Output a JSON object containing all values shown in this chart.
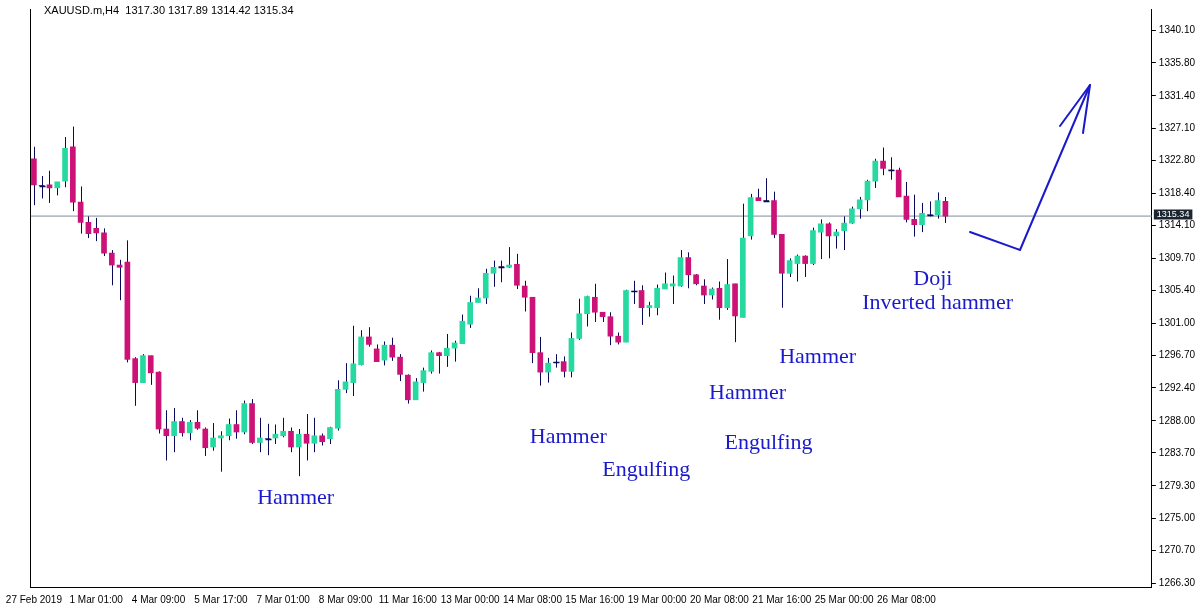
{
  "chart_data": {
    "type": "candlestick",
    "title": "XAUUSD.m,H4  1317.30 1317.89 1314.42 1315.34",
    "categories": [
      "27 Feb 2019",
      null,
      null,
      null,
      null,
      null,
      null,
      null,
      "1 Mar 01:00",
      null,
      null,
      null,
      null,
      null,
      null,
      null,
      "4 Mar 09:00",
      null,
      null,
      null,
      null,
      null,
      null,
      null,
      "5 Mar 17:00",
      null,
      null,
      null,
      null,
      null,
      null,
      null,
      "7 Mar 01:00",
      null,
      null,
      null,
      null,
      null,
      null,
      null,
      "8 Mar 09:00",
      null,
      null,
      null,
      null,
      null,
      null,
      null,
      "11 Mar 16:00",
      null,
      null,
      null,
      null,
      null,
      null,
      null,
      "13 Mar 00:00",
      null,
      null,
      null,
      null,
      null,
      null,
      null,
      "14 Mar 08:00",
      null,
      null,
      null,
      null,
      null,
      null,
      null,
      "15 Mar 16:00",
      null,
      null,
      null,
      null,
      null,
      null,
      null,
      "19 Mar 00:00",
      null,
      null,
      null,
      null,
      null,
      null,
      null,
      "20 Mar 08:00",
      null,
      null,
      null,
      null,
      null,
      null,
      null,
      "21 Mar 16:00",
      null,
      null,
      null,
      null,
      null,
      null,
      null,
      "25 Mar 00:00",
      null,
      null,
      null,
      null,
      null,
      null,
      null,
      "26 Mar 08:00",
      null,
      null,
      null,
      null,
      null,
      null,
      null,
      null,
      null,
      null,
      null,
      null,
      null,
      null,
      null,
      null,
      null,
      null,
      null,
      null,
      null,
      null,
      null,
      null,
      null,
      null,
      null,
      null,
      null,
      null,
      null
    ],
    "ohlc": [
      [
        1323.0,
        1324.6,
        1316.8,
        1319.5
      ],
      [
        1319.4,
        1320.7,
        1317.7,
        1319.4
      ],
      [
        1319.5,
        1321.4,
        1317.1,
        1319.1
      ],
      [
        1319.1,
        1319.9,
        1318.1,
        1319.9
      ],
      [
        1320.0,
        1325.9,
        1319.2,
        1324.4
      ],
      [
        1324.6,
        1327.3,
        1316.0,
        1317.2
      ],
      [
        1317.2,
        1319.3,
        1313.0,
        1314.5
      ],
      [
        1314.5,
        1315.3,
        1312.4,
        1313.0
      ],
      [
        1313.7,
        1315.1,
        1312.0,
        1313.1
      ],
      [
        1313.1,
        1313.7,
        1310.0,
        1310.4
      ],
      [
        1310.4,
        1310.8,
        1306.1,
        1308.8
      ],
      [
        1308.8,
        1309.5,
        1304.1,
        1308.5
      ],
      [
        1309.2,
        1312.1,
        1295.8,
        1296.2
      ],
      [
        1296.3,
        1296.5,
        1290.0,
        1293.1
      ],
      [
        1293.1,
        1296.9,
        1293.1,
        1296.7
      ],
      [
        1296.7,
        1296.7,
        1292.8,
        1294.4
      ],
      [
        1294.5,
        1294.6,
        1286.3,
        1286.9
      ],
      [
        1286.9,
        1289.4,
        1282.7,
        1286.0
      ],
      [
        1286.0,
        1289.7,
        1283.8,
        1287.9
      ],
      [
        1287.9,
        1288.4,
        1285.9,
        1286.4
      ],
      [
        1286.4,
        1288.1,
        1285.4,
        1287.8
      ],
      [
        1287.8,
        1289.4,
        1286.8,
        1287.0
      ],
      [
        1286.9,
        1287.1,
        1283.3,
        1284.4
      ],
      [
        1284.5,
        1287.7,
        1284.0,
        1285.7
      ],
      [
        1285.7,
        1286.6,
        1281.2,
        1286.0
      ],
      [
        1286.0,
        1288.3,
        1285.4,
        1287.5
      ],
      [
        1287.5,
        1289.4,
        1285.6,
        1286.5
      ],
      [
        1286.5,
        1290.7,
        1286.2,
        1290.3
      ],
      [
        1290.3,
        1290.9,
        1284.9,
        1285.1
      ],
      [
        1285.1,
        1288.4,
        1283.8,
        1285.7
      ],
      [
        1285.6,
        1287.6,
        1283.4,
        1285.6
      ],
      [
        1285.7,
        1287.5,
        1284.9,
        1286.2
      ],
      [
        1286.0,
        1288.4,
        1285.8,
        1286.6
      ],
      [
        1286.6,
        1287.1,
        1283.8,
        1284.5
      ],
      [
        1284.5,
        1286.9,
        1280.6,
        1286.2
      ],
      [
        1286.2,
        1288.9,
        1282.7,
        1285.0
      ],
      [
        1285.0,
        1288.4,
        1283.8,
        1286.0
      ],
      [
        1286.0,
        1286.3,
        1284.7,
        1285.2
      ],
      [
        1285.6,
        1287.2,
        1284.9,
        1287.1
      ],
      [
        1287.0,
        1293.4,
        1286.7,
        1292.2
      ],
      [
        1292.2,
        1295.7,
        1291.7,
        1293.2
      ],
      [
        1293.1,
        1300.7,
        1291.3,
        1295.6
      ],
      [
        1295.5,
        1300.1,
        1295.4,
        1299.2
      ],
      [
        1299.2,
        1300.5,
        1297.9,
        1298.2
      ],
      [
        1297.6,
        1298.2,
        1295.9,
        1295.9
      ],
      [
        1296.1,
        1298.6,
        1295.4,
        1298.1
      ],
      [
        1298.1,
        1299.1,
        1296.0,
        1296.5
      ],
      [
        1296.5,
        1296.9,
        1293.3,
        1294.2
      ],
      [
        1294.1,
        1294.2,
        1290.3,
        1290.8
      ],
      [
        1290.8,
        1293.7,
        1290.8,
        1293.2
      ],
      [
        1293.1,
        1295.1,
        1291.9,
        1294.7
      ],
      [
        1294.6,
        1297.4,
        1294.3,
        1297.1
      ],
      [
        1297.1,
        1297.2,
        1294.3,
        1296.7
      ],
      [
        1296.7,
        1299.6,
        1295.2,
        1297.7
      ],
      [
        1297.7,
        1298.7,
        1295.9,
        1298.4
      ],
      [
        1298.3,
        1302.2,
        1298.3,
        1301.3
      ],
      [
        1300.9,
        1304.7,
        1300.4,
        1303.8
      ],
      [
        1303.8,
        1305.7,
        1303.8,
        1304.4
      ],
      [
        1304.4,
        1308.3,
        1303.6,
        1307.7
      ],
      [
        1307.7,
        1309.4,
        1305.9,
        1308.5
      ],
      [
        1308.6,
        1309.4,
        1306.5,
        1308.6
      ],
      [
        1308.5,
        1311.2,
        1308.4,
        1308.8
      ],
      [
        1308.9,
        1310.3,
        1305.6,
        1306.1
      ],
      [
        1306.0,
        1306.7,
        1302.6,
        1304.5
      ],
      [
        1304.5,
        1304.5,
        1295.7,
        1297.1
      ],
      [
        1297.1,
        1299.2,
        1292.7,
        1294.5
      ],
      [
        1294.5,
        1296.4,
        1293.1,
        1295.7
      ],
      [
        1295.8,
        1296.9,
        1295.1,
        1295.8
      ],
      [
        1295.9,
        1296.6,
        1293.8,
        1294.6
      ],
      [
        1294.6,
        1299.8,
        1293.8,
        1299.0
      ],
      [
        1299.0,
        1304.3,
        1298.8,
        1302.3
      ],
      [
        1302.3,
        1304.7,
        1300.6,
        1304.6
      ],
      [
        1304.5,
        1306.3,
        1301.2,
        1302.5
      ],
      [
        1302.5,
        1302.5,
        1301.2,
        1301.9
      ],
      [
        1301.9,
        1302.5,
        1298.1,
        1299.3
      ],
      [
        1299.3,
        1299.8,
        1298.2,
        1298.5
      ],
      [
        1298.5,
        1305.5,
        1298.5,
        1305.4
      ],
      [
        1305.3,
        1306.7,
        1303.6,
        1305.3
      ],
      [
        1305.4,
        1306.1,
        1300.8,
        1303.1
      ],
      [
        1303.1,
        1303.9,
        1301.9,
        1303.4
      ],
      [
        1303.1,
        1306.2,
        1302.1,
        1305.7
      ],
      [
        1305.6,
        1307.8,
        1305.6,
        1306.3
      ],
      [
        1306.0,
        1307.4,
        1303.6,
        1306.3
      ],
      [
        1306.0,
        1310.8,
        1305.9,
        1309.8
      ],
      [
        1309.8,
        1310.5,
        1305.7,
        1307.5
      ],
      [
        1307.5,
        1307.6,
        1306.1,
        1306.3
      ],
      [
        1306.0,
        1306.9,
        1303.6,
        1304.8
      ],
      [
        1304.8,
        1305.8,
        1304.2,
        1305.6
      ],
      [
        1305.7,
        1306.6,
        1301.5,
        1303.1
      ],
      [
        1303.1,
        1309.6,
        1302.8,
        1306.2
      ],
      [
        1306.3,
        1306.3,
        1298.5,
        1302.0
      ],
      [
        1301.8,
        1317.0,
        1301.8,
        1312.4
      ],
      [
        1312.7,
        1318.3,
        1312.2,
        1317.8
      ],
      [
        1317.8,
        1319.0,
        1317.4,
        1317.4
      ],
      [
        1317.4,
        1320.4,
        1317.3,
        1317.4
      ],
      [
        1317.4,
        1318.6,
        1312.4,
        1312.9
      ],
      [
        1312.9,
        1312.9,
        1303.1,
        1307.7
      ],
      [
        1307.7,
        1309.7,
        1307.2,
        1309.4
      ],
      [
        1309.0,
        1310.2,
        1306.6,
        1310.0
      ],
      [
        1310.0,
        1310.1,
        1307.2,
        1309.0
      ],
      [
        1309.0,
        1313.8,
        1308.8,
        1313.4
      ],
      [
        1313.2,
        1314.9,
        1309.6,
        1314.3
      ],
      [
        1314.3,
        1314.5,
        1309.7,
        1312.7
      ],
      [
        1312.7,
        1313.6,
        1311.0,
        1313.2
      ],
      [
        1313.4,
        1315.3,
        1310.8,
        1314.4
      ],
      [
        1314.4,
        1316.6,
        1314.3,
        1316.3
      ],
      [
        1316.3,
        1317.9,
        1315.0,
        1317.5
      ],
      [
        1317.5,
        1320.2,
        1316.0,
        1320.0
      ],
      [
        1320.0,
        1323.0,
        1319.1,
        1322.7
      ],
      [
        1322.7,
        1324.5,
        1320.8,
        1321.7
      ],
      [
        1321.5,
        1323.2,
        1320.2,
        1321.5
      ],
      [
        1321.5,
        1321.8,
        1317.9,
        1317.9
      ],
      [
        1318.0,
        1319.9,
        1314.5,
        1314.9
      ],
      [
        1314.9,
        1318.2,
        1312.6,
        1314.2
      ],
      [
        1314.2,
        1317.1,
        1313.2,
        1315.7
      ],
      [
        1315.5,
        1317.3,
        1315.3,
        1315.5
      ],
      [
        1315.5,
        1318.5,
        1315.0,
        1317.4
      ],
      [
        1317.3,
        1317.89,
        1314.42,
        1315.34
      ],
      null,
      null,
      null,
      null,
      null,
      null,
      null,
      null,
      null,
      null,
      null,
      null,
      null,
      null,
      null,
      null,
      null,
      null,
      null,
      null,
      null,
      null,
      null,
      null,
      null,
      null
    ],
    "colors": [
      "#cc1177",
      "#0a0a5a",
      "#cc1177",
      "#26d9a0",
      "#26d9a0",
      "#cc1177",
      "#cc1177",
      "#cc1177",
      "#cc1177",
      "#cc1177",
      "#cc1177",
      "#cc1177",
      "#cc1177",
      "#cc1177",
      "#26d9a0",
      "#cc1177",
      "#cc1177",
      "#cc1177",
      "#26d9a0",
      "#cc1177",
      "#26d9a0",
      "#cc1177",
      "#cc1177",
      "#26d9a0",
      "#26d9a0",
      "#26d9a0",
      "#cc1177",
      "#26d9a0",
      "#cc1177",
      "#26d9a0",
      "#0a0a5a",
      "#26d9a0",
      "#26d9a0",
      "#cc1177",
      "#26d9a0",
      "#cc1177",
      "#26d9a0",
      "#cc1177",
      "#26d9a0",
      "#26d9a0",
      "#26d9a0",
      "#26d9a0",
      "#26d9a0",
      "#cc1177",
      "#cc1177",
      "#26d9a0",
      "#cc1177",
      "#cc1177",
      "#cc1177",
      "#26d9a0",
      "#26d9a0",
      "#26d9a0",
      "#cc1177",
      "#26d9a0",
      "#26d9a0",
      "#26d9a0",
      "#26d9a0",
      "#26d9a0",
      "#26d9a0",
      "#26d9a0",
      "#0a0a5a",
      "#26d9a0",
      "#cc1177",
      "#cc1177",
      "#cc1177",
      "#cc1177",
      "#26d9a0",
      "#0a0a5a",
      "#cc1177",
      "#26d9a0",
      "#26d9a0",
      "#26d9a0",
      "#cc1177",
      "#cc1177",
      "#cc1177",
      "#cc1177",
      "#26d9a0",
      "#0a0a5a",
      "#cc1177",
      "#26d9a0",
      "#26d9a0",
      "#26d9a0",
      "#26d9a0",
      "#26d9a0",
      "#cc1177",
      "#cc1177",
      "#cc1177",
      "#26d9a0",
      "#cc1177",
      "#26d9a0",
      "#cc1177",
      "#26d9a0",
      "#26d9a0",
      "#cc1177",
      "#0a0a5a",
      "#cc1177",
      "#cc1177",
      "#26d9a0",
      "#26d9a0",
      "#cc1177",
      "#26d9a0",
      "#26d9a0",
      "#cc1177",
      "#26d9a0",
      "#26d9a0",
      "#26d9a0",
      "#26d9a0",
      "#26d9a0",
      "#26d9a0",
      "#cc1177",
      "#0a0a5a",
      "#cc1177",
      "#cc1177",
      "#cc1177",
      "#26d9a0",
      "#0a0a5a",
      "#26d9a0",
      "#cc1177",
      null,
      null,
      null,
      null,
      null,
      null,
      null,
      null,
      null,
      null,
      null,
      null,
      null,
      null,
      null,
      null,
      null,
      null,
      null,
      null,
      null,
      null,
      null,
      null,
      null,
      null
    ],
    "ylim": [
      1265.8,
      1343.0
    ],
    "yticks": [
      {
        "value": 1340.1,
        "label": "1340.10"
      },
      {
        "value": 1335.8,
        "label": "1335.80"
      },
      {
        "value": 1331.4,
        "label": "1331.40"
      },
      {
        "value": 1327.1,
        "label": "1327.10"
      },
      {
        "value": 1322.8,
        "label": "1322.80"
      },
      {
        "value": 1318.4,
        "label": "1318.40"
      },
      {
        "value": 1314.1,
        "label": "1314.10"
      },
      {
        "value": 1309.7,
        "label": "1309.70"
      },
      {
        "value": 1305.4,
        "label": "1305.40"
      },
      {
        "value": 1301.0,
        "label": "1301.00"
      },
      {
        "value": 1296.7,
        "label": "1296.70"
      },
      {
        "value": 1292.4,
        "label": "1292.40"
      },
      {
        "value": 1288.0,
        "label": "1288.00"
      },
      {
        "value": 1283.7,
        "label": "1283.70"
      },
      {
        "value": 1279.3,
        "label": "1279.30"
      },
      {
        "value": 1275.0,
        "label": "1275.00"
      },
      {
        "value": 1270.7,
        "label": "1270.70"
      },
      {
        "value": 1266.3,
        "label": "1266.30"
      }
    ],
    "ref_lines": [
      {
        "axis": "y",
        "value": 1315.34,
        "label": "1315.34",
        "color": "#7f8c99"
      }
    ],
    "annotations": [
      "Hammer",
      "Hammer",
      "Engulfing",
      "Hammer",
      "Engulfing",
      "Hammer",
      "Doji",
      "Inverted hammer"
    ],
    "grid": false,
    "legend": false
  }
}
